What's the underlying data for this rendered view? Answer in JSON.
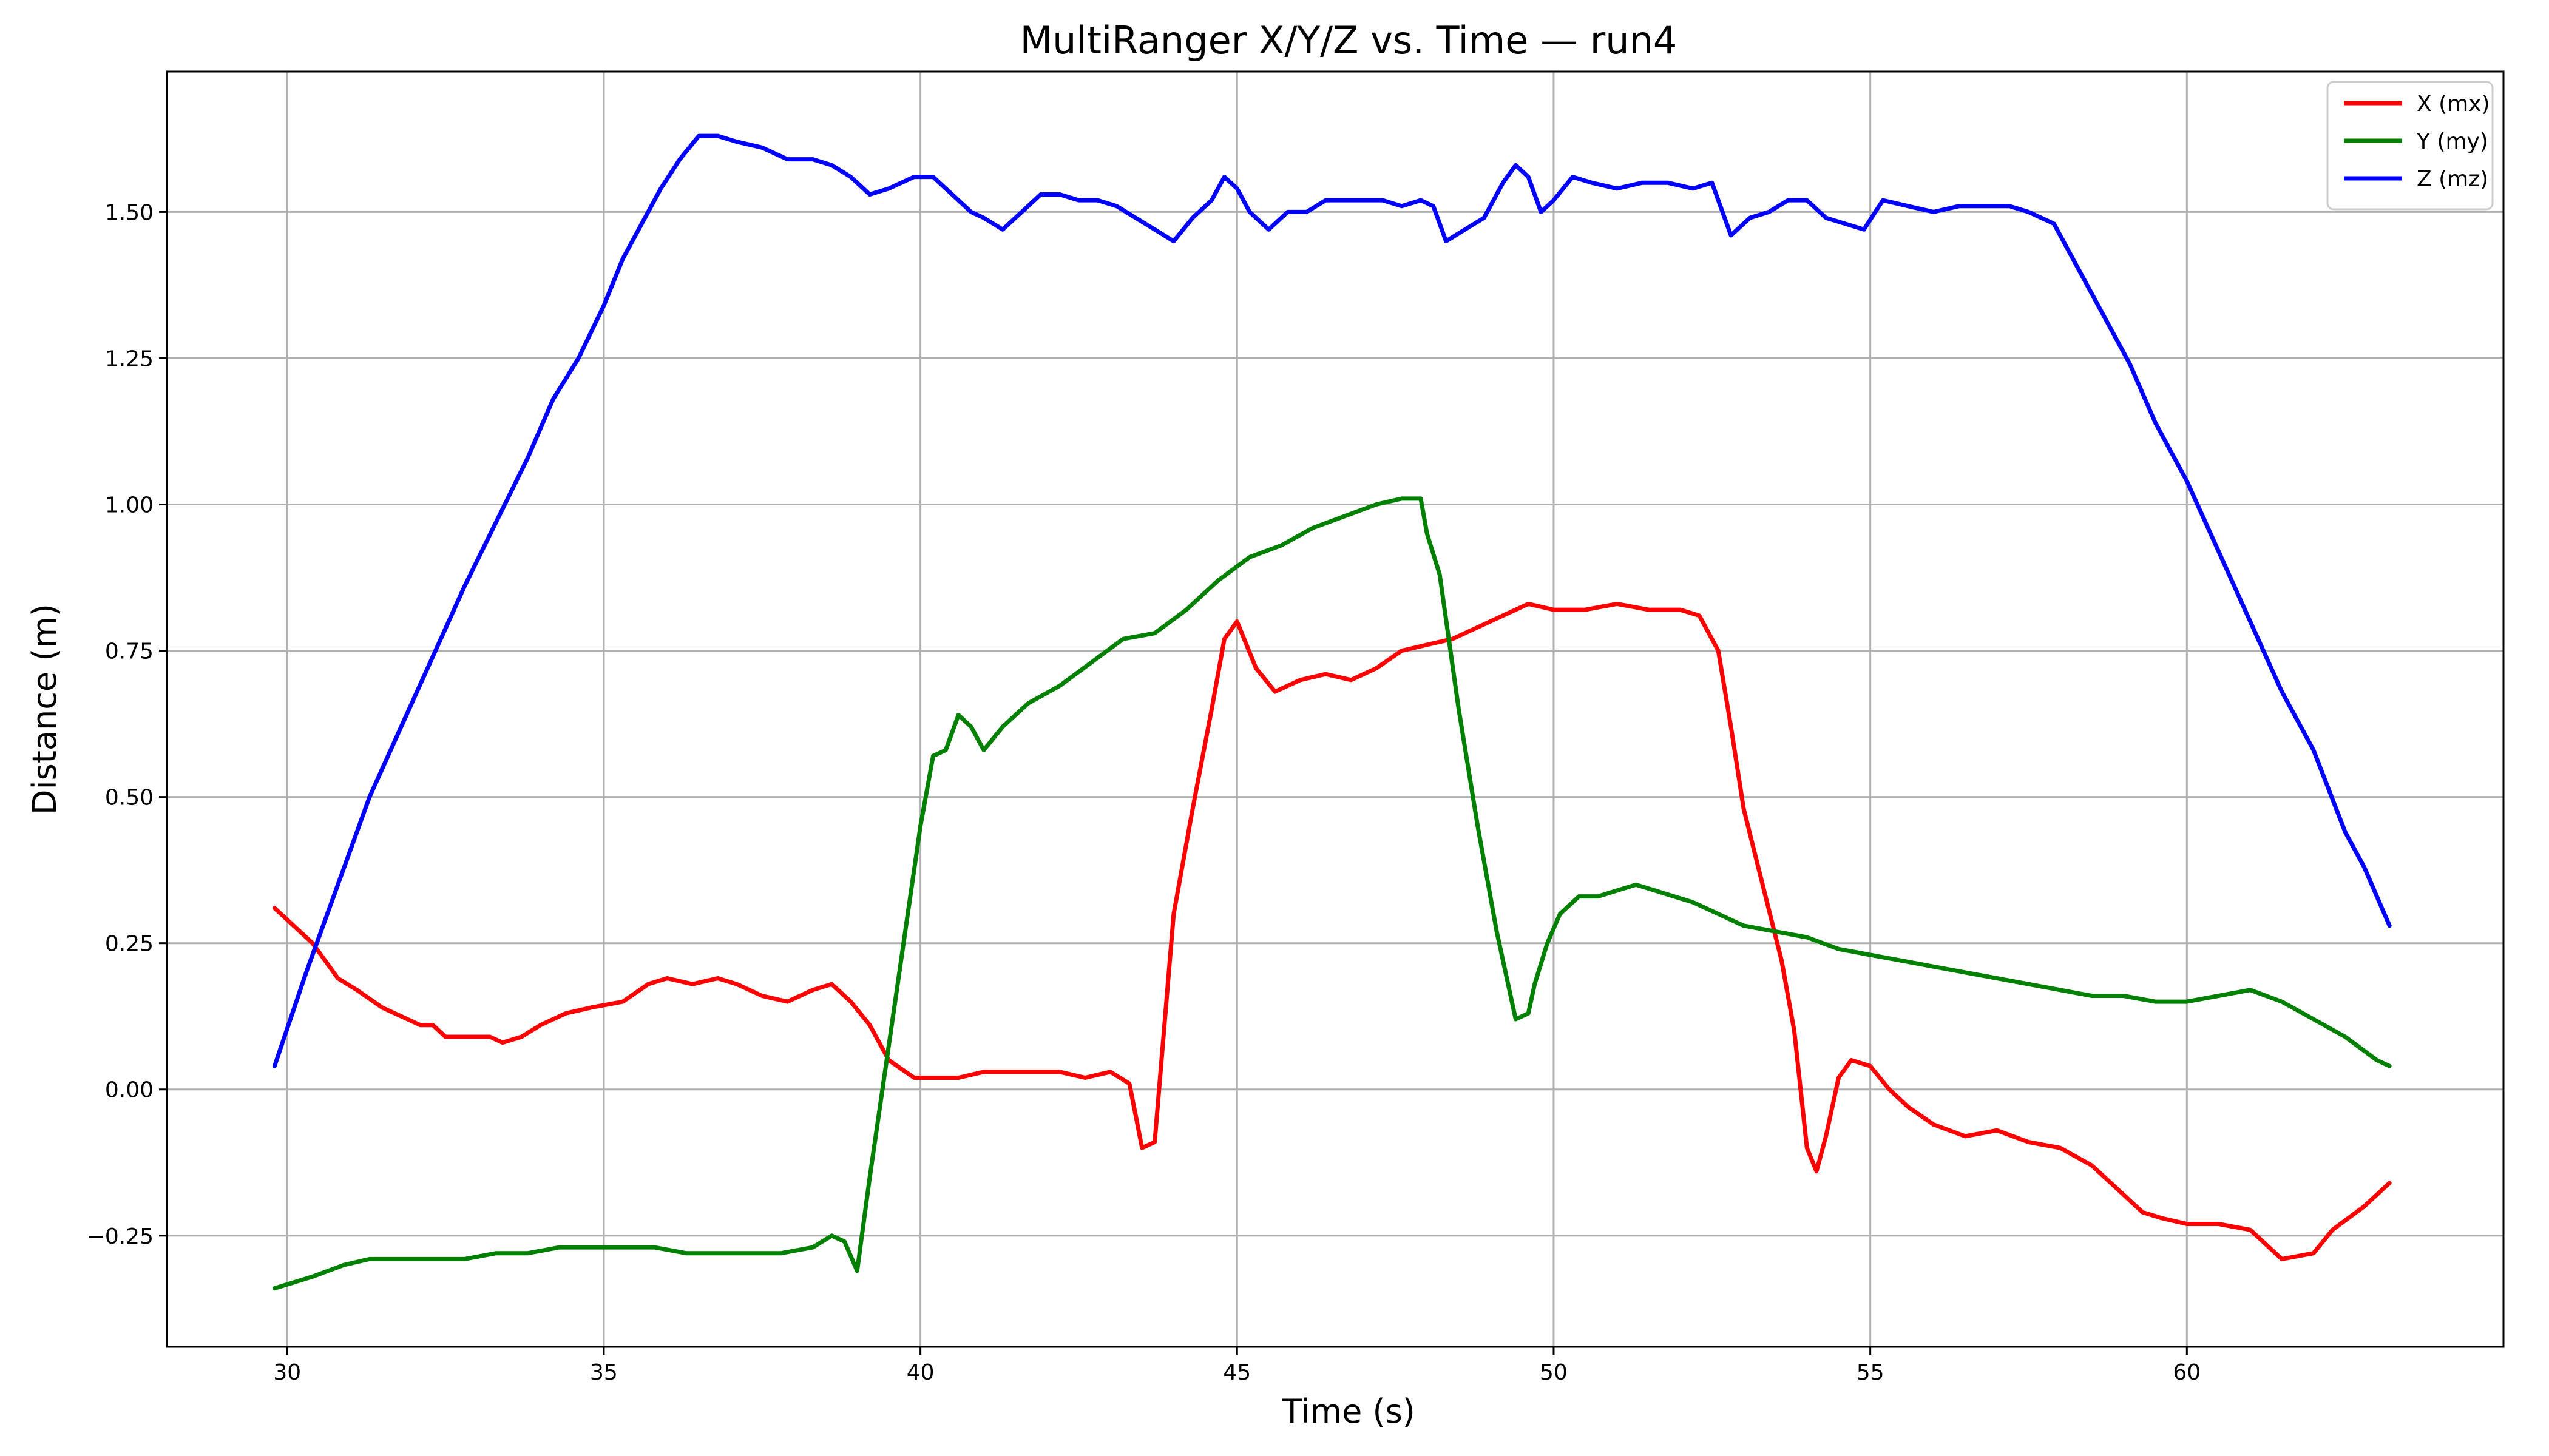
{
  "chart_data": {
    "type": "line",
    "title": "MultiRanger X/Y/Z vs. Time — run4",
    "xlabel": "Time (s)",
    "ylabel": "Distance (m)",
    "xlim": [
      28.1,
      65.0
    ],
    "ylim": [
      -0.44,
      1.74
    ],
    "xticks": [
      30,
      35,
      40,
      45,
      50,
      55,
      60
    ],
    "xtick_labels": [
      "30",
      "35",
      "40",
      "45",
      "50",
      "55",
      "60"
    ],
    "yticks": [
      -0.25,
      0.0,
      0.25,
      0.5,
      0.75,
      1.0,
      1.25,
      1.5
    ],
    "ytick_labels": [
      "−0.25",
      "0.00",
      "0.25",
      "0.50",
      "0.75",
      "1.00",
      "1.25",
      "1.50"
    ],
    "grid": true,
    "legend_position": "top-right",
    "series": [
      {
        "name": "X (mx)",
        "color": "#ff0000",
        "x": [
          29.8,
          30.4,
          30.8,
          31.1,
          31.5,
          31.9,
          32.1,
          32.3,
          32.5,
          32.8,
          33.0,
          33.2,
          33.4,
          33.7,
          34.0,
          34.4,
          34.8,
          35.3,
          35.7,
          36.0,
          36.4,
          36.8,
          37.1,
          37.5,
          37.9,
          38.3,
          38.6,
          38.9,
          39.2,
          39.5,
          39.9,
          40.2,
          40.6,
          41.0,
          41.4,
          41.8,
          42.2,
          42.6,
          43.0,
          43.3,
          43.5,
          43.7,
          44.0,
          44.3,
          44.6,
          44.8,
          45.0,
          45.3,
          45.6,
          46.0,
          46.4,
          46.8,
          47.2,
          47.6,
          48.0,
          48.4,
          48.8,
          49.2,
          49.6,
          50.0,
          50.5,
          51.0,
          51.5,
          52.0,
          52.3,
          52.6,
          52.8,
          53.0,
          53.3,
          53.6,
          53.8,
          54.0,
          54.15,
          54.3,
          54.5,
          54.7,
          55.0,
          55.3,
          55.6,
          56.0,
          56.5,
          57.0,
          57.5,
          58.0,
          58.5,
          59.0,
          59.3,
          59.6,
          60.0,
          60.5,
          61.0,
          61.5,
          62.0,
          62.3,
          62.8,
          63.2
        ],
        "y": [
          0.31,
          0.25,
          0.19,
          0.17,
          0.14,
          0.12,
          0.11,
          0.11,
          0.09,
          0.09,
          0.09,
          0.09,
          0.08,
          0.09,
          0.11,
          0.13,
          0.14,
          0.15,
          0.18,
          0.19,
          0.18,
          0.19,
          0.18,
          0.16,
          0.15,
          0.17,
          0.18,
          0.15,
          0.11,
          0.05,
          0.02,
          0.02,
          0.02,
          0.03,
          0.03,
          0.03,
          0.03,
          0.02,
          0.03,
          0.01,
          -0.1,
          -0.09,
          0.3,
          0.48,
          0.65,
          0.77,
          0.8,
          0.72,
          0.68,
          0.7,
          0.71,
          0.7,
          0.72,
          0.75,
          0.76,
          0.77,
          0.79,
          0.81,
          0.83,
          0.82,
          0.82,
          0.83,
          0.82,
          0.82,
          0.81,
          0.75,
          0.62,
          0.48,
          0.35,
          0.22,
          0.1,
          -0.1,
          -0.14,
          -0.08,
          0.02,
          0.05,
          0.04,
          0.0,
          -0.03,
          -0.06,
          -0.08,
          -0.07,
          -0.09,
          -0.1,
          -0.13,
          -0.18,
          -0.21,
          -0.22,
          -0.23,
          -0.23,
          -0.24,
          -0.29,
          -0.28,
          -0.24,
          -0.2,
          -0.16
        ]
      },
      {
        "name": "Y (my)",
        "color": "#008000",
        "x": [
          29.8,
          30.4,
          30.9,
          31.3,
          31.8,
          32.3,
          32.8,
          33.3,
          33.8,
          34.3,
          34.8,
          35.3,
          35.8,
          36.3,
          36.8,
          37.3,
          37.8,
          38.3,
          38.6,
          38.8,
          39.0,
          39.2,
          39.4,
          39.6,
          39.8,
          40.0,
          40.2,
          40.4,
          40.6,
          40.8,
          41.0,
          41.3,
          41.7,
          42.2,
          42.7,
          43.2,
          43.7,
          44.2,
          44.7,
          45.2,
          45.7,
          46.2,
          46.7,
          47.2,
          47.6,
          47.9,
          48.0,
          48.2,
          48.5,
          48.8,
          49.1,
          49.4,
          49.6,
          49.7,
          49.9,
          50.1,
          50.4,
          50.7,
          51.0,
          51.3,
          51.6,
          51.9,
          52.2,
          52.6,
          53.0,
          53.5,
          54.0,
          54.5,
          55.0,
          55.5,
          56.0,
          56.5,
          57.0,
          57.5,
          58.0,
          58.5,
          59.0,
          59.5,
          60.0,
          60.5,
          61.0,
          61.5,
          62.0,
          62.5,
          63.0,
          63.2
        ],
        "y": [
          -0.34,
          -0.32,
          -0.3,
          -0.29,
          -0.29,
          -0.29,
          -0.29,
          -0.28,
          -0.28,
          -0.27,
          -0.27,
          -0.27,
          -0.27,
          -0.28,
          -0.28,
          -0.28,
          -0.28,
          -0.27,
          -0.25,
          -0.26,
          -0.31,
          -0.15,
          0.0,
          0.15,
          0.3,
          0.45,
          0.57,
          0.58,
          0.64,
          0.62,
          0.58,
          0.62,
          0.66,
          0.69,
          0.73,
          0.77,
          0.78,
          0.82,
          0.87,
          0.91,
          0.93,
          0.96,
          0.98,
          1.0,
          1.01,
          1.01,
          0.95,
          0.88,
          0.65,
          0.45,
          0.27,
          0.12,
          0.13,
          0.18,
          0.25,
          0.3,
          0.33,
          0.33,
          0.34,
          0.35,
          0.34,
          0.33,
          0.32,
          0.3,
          0.28,
          0.27,
          0.26,
          0.24,
          0.23,
          0.22,
          0.21,
          0.2,
          0.19,
          0.18,
          0.17,
          0.16,
          0.16,
          0.15,
          0.15,
          0.16,
          0.17,
          0.15,
          0.12,
          0.09,
          0.05,
          0.04
        ]
      },
      {
        "name": "Z (mz)",
        "color": "#0000ff",
        "x": [
          29.8,
          30.3,
          30.8,
          31.3,
          31.8,
          32.3,
          32.8,
          33.3,
          33.8,
          34.2,
          34.6,
          35.0,
          35.3,
          35.6,
          35.9,
          36.2,
          36.5,
          36.8,
          37.1,
          37.5,
          37.9,
          38.3,
          38.6,
          38.9,
          39.2,
          39.5,
          39.9,
          40.2,
          40.5,
          40.8,
          41.0,
          41.3,
          41.6,
          41.9,
          42.2,
          42.5,
          42.8,
          43.1,
          43.4,
          43.7,
          44.0,
          44.3,
          44.6,
          44.8,
          45.0,
          45.2,
          45.5,
          45.8,
          46.1,
          46.4,
          46.7,
          47.0,
          47.3,
          47.6,
          47.9,
          48.1,
          48.3,
          48.6,
          48.9,
          49.2,
          49.4,
          49.6,
          49.8,
          50.0,
          50.3,
          50.6,
          51.0,
          51.4,
          51.8,
          52.2,
          52.5,
          52.8,
          53.1,
          53.4,
          53.7,
          54.0,
          54.3,
          54.6,
          54.9,
          55.2,
          55.6,
          56.0,
          56.4,
          56.8,
          57.2,
          57.5,
          57.9,
          58.3,
          58.7,
          59.1,
          59.5,
          60.0,
          60.5,
          61.0,
          61.5,
          62.0,
          62.5,
          62.8,
          63.2
        ],
        "y": [
          0.04,
          0.2,
          0.35,
          0.5,
          0.62,
          0.74,
          0.86,
          0.97,
          1.08,
          1.18,
          1.25,
          1.34,
          1.42,
          1.48,
          1.54,
          1.59,
          1.63,
          1.63,
          1.62,
          1.61,
          1.59,
          1.59,
          1.58,
          1.56,
          1.53,
          1.54,
          1.56,
          1.56,
          1.53,
          1.5,
          1.49,
          1.47,
          1.5,
          1.53,
          1.53,
          1.52,
          1.52,
          1.51,
          1.49,
          1.47,
          1.45,
          1.49,
          1.52,
          1.56,
          1.54,
          1.5,
          1.47,
          1.5,
          1.5,
          1.52,
          1.52,
          1.52,
          1.52,
          1.51,
          1.52,
          1.51,
          1.45,
          1.47,
          1.49,
          1.55,
          1.58,
          1.56,
          1.5,
          1.52,
          1.56,
          1.55,
          1.54,
          1.55,
          1.55,
          1.54,
          1.55,
          1.46,
          1.49,
          1.5,
          1.52,
          1.52,
          1.49,
          1.48,
          1.47,
          1.52,
          1.51,
          1.5,
          1.51,
          1.51,
          1.51,
          1.5,
          1.48,
          1.4,
          1.32,
          1.24,
          1.14,
          1.04,
          0.92,
          0.8,
          0.68,
          0.58,
          0.44,
          0.38,
          0.28
        ]
      }
    ]
  }
}
